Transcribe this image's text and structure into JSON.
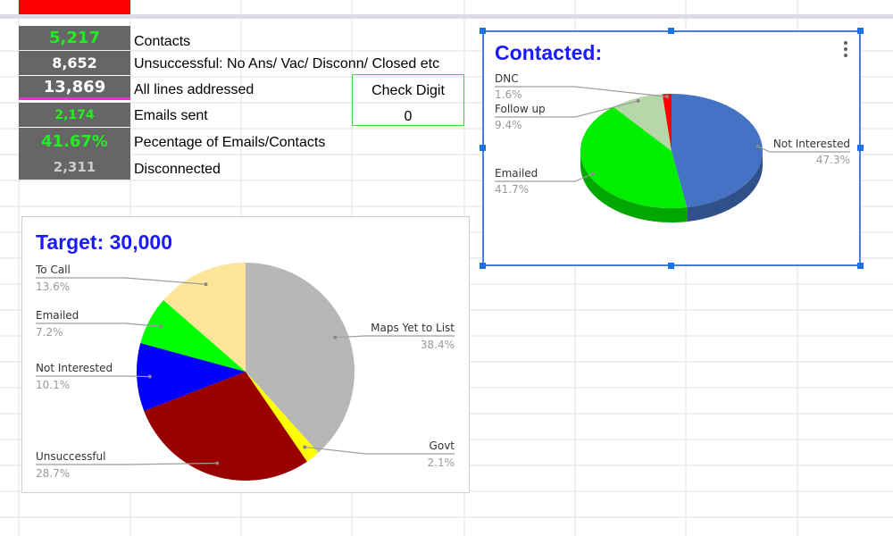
{
  "kpis": [
    {
      "value": "5,217",
      "label": "Contacts",
      "color": "#22ee22"
    },
    {
      "value": "8,652",
      "label": "Unsuccessful: No Ans/ Vac/ Disconn/ Closed etc",
      "color": "#ffffff"
    },
    {
      "value": "13,869",
      "label": "All lines addressed",
      "color": "#ffffff"
    },
    {
      "value": "2,174",
      "label": "Emails sent",
      "color": "#22ee22"
    },
    {
      "value": "41.67%",
      "label": "Pecentage of Emails/Contacts",
      "color": "#22ee22"
    },
    {
      "value": "2,311",
      "label": "Disconnected",
      "color": "#cccccc"
    }
  ],
  "check_digit": {
    "label": "Check Digit",
    "value": "0"
  },
  "chart_data": [
    {
      "type": "pie",
      "title": "Target: 30,000",
      "slices": [
        {
          "name": "Maps Yet to List",
          "value": 38.4,
          "label": "38.4%",
          "color": "#b7b7b7"
        },
        {
          "name": "Govt",
          "value": 2.1,
          "label": "2.1%",
          "color": "#ffff00"
        },
        {
          "name": "Unsuccessful",
          "value": 28.7,
          "label": "28.7%",
          "color": "#990000"
        },
        {
          "name": "Not Interested",
          "value": 10.1,
          "label": "10.1%",
          "color": "#0000ff"
        },
        {
          "name": "Emailed",
          "value": 7.2,
          "label": "7.2%",
          "color": "#00ff00"
        },
        {
          "name": "To Call",
          "value": 13.6,
          "label": "13.6%",
          "color": "#ffe599"
        }
      ]
    },
    {
      "type": "pie",
      "style": "3d",
      "title": "Contacted:",
      "slices": [
        {
          "name": "Not Interested",
          "value": 47.3,
          "label": "47.3%",
          "color": "#4472c4"
        },
        {
          "name": "Emailed",
          "value": 41.7,
          "label": "41.7%",
          "color": "#00ee00"
        },
        {
          "name": "Follow up",
          "value": 9.4,
          "label": "9.4%",
          "color": "#b6d7a8"
        },
        {
          "name": "DNC",
          "value": 1.6,
          "label": "1.6%",
          "color": "#ff0000"
        }
      ]
    }
  ]
}
